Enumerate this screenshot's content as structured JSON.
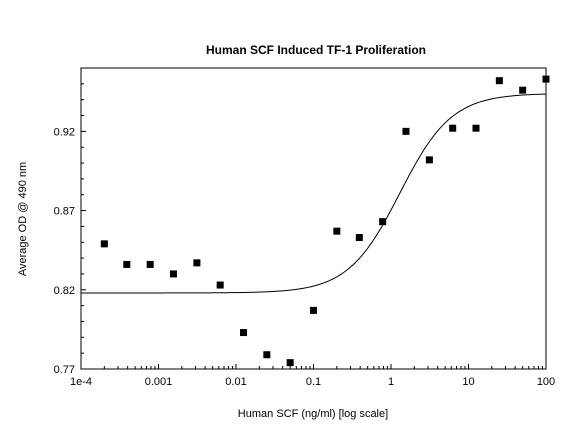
{
  "chart_data": {
    "type": "scatter",
    "title": "Human SCF Induced TF-1 Proliferation",
    "xlabel": "Human SCF (ng/ml) [log scale]",
    "ylabel": "Average OD @ 490 nm",
    "x_scale": "log",
    "xlim": [
      0.0001,
      100
    ],
    "ylim": [
      0.77,
      0.96
    ],
    "x_ticks": [
      0.0001,
      0.001,
      0.01,
      0.1,
      1,
      10,
      100
    ],
    "x_tick_labels": [
      "1e-4",
      "0.001",
      "0.01",
      "0.1",
      "1",
      "10",
      "100"
    ],
    "y_ticks": [
      0.77,
      0.82,
      0.87,
      0.92
    ],
    "y_tick_labels": [
      "0.77",
      "0.82",
      "0.87",
      "0.92"
    ],
    "grid": false,
    "legend": "none",
    "series": [
      {
        "marker": "square",
        "color": "#000000",
        "points": [
          {
            "x": 0.0002,
            "y": 0.849
          },
          {
            "x": 0.00039,
            "y": 0.836
          },
          {
            "x": 0.00078,
            "y": 0.836
          },
          {
            "x": 0.00156,
            "y": 0.83
          },
          {
            "x": 0.00313,
            "y": 0.837
          },
          {
            "x": 0.00625,
            "y": 0.823
          },
          {
            "x": 0.0125,
            "y": 0.793
          },
          {
            "x": 0.025,
            "y": 0.779
          },
          {
            "x": 0.05,
            "y": 0.774
          },
          {
            "x": 0.1,
            "y": 0.807
          },
          {
            "x": 0.2,
            "y": 0.857
          },
          {
            "x": 0.39,
            "y": 0.853
          },
          {
            "x": 0.78,
            "y": 0.863
          },
          {
            "x": 1.56,
            "y": 0.92
          },
          {
            "x": 3.13,
            "y": 0.902
          },
          {
            "x": 6.25,
            "y": 0.922
          },
          {
            "x": 12.5,
            "y": 0.922
          },
          {
            "x": 25,
            "y": 0.952
          },
          {
            "x": 50,
            "y": 0.946
          },
          {
            "x": 100,
            "y": 0.953
          }
        ]
      },
      {
        "type": "line",
        "fit": "four-parameter logistic",
        "color": "#000000",
        "bottom": 0.818,
        "top": 0.944,
        "ec50": 1.3,
        "hill": 1.3
      }
    ]
  }
}
